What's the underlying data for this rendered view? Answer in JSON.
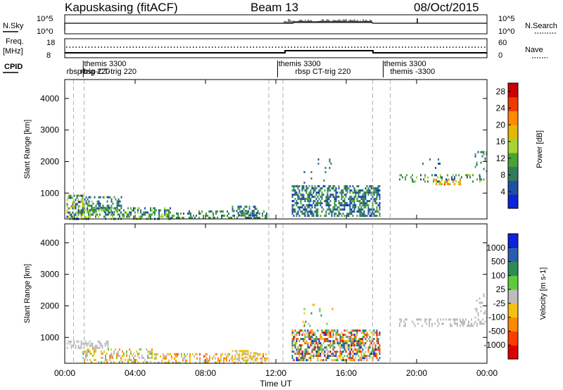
{
  "header": {
    "station": "Kapuskasing (fitACF)",
    "beam": "Beam 13",
    "date": "08/Oct/2015"
  },
  "strip": {
    "nsky_label": "N.Sky",
    "nsearch_label": "N.Search",
    "freq_label_1": "Freq.",
    "freq_label_2": "[MHz]",
    "nave_label": "Nave",
    "cpid_label": "CPID",
    "noise_left_ticks": [
      "10^5",
      "10^0"
    ],
    "noise_right_ticks": [
      "10^5",
      "10^0"
    ],
    "freq_left_ticks": [
      "18",
      "8"
    ],
    "freq_right_ticks": [
      "60",
      "0"
    ]
  },
  "cpid_labels": [
    {
      "text": "themis 3300",
      "hour": 1.1,
      "row": 1
    },
    {
      "text": "rbsp-trig 220",
      "hour": 0.1,
      "row": 2
    },
    {
      "text": "rbsp-CT-trig 220",
      "hour": 0.9,
      "row": 2
    },
    {
      "text": "themis 3300",
      "hour": 12.15,
      "row": 1
    },
    {
      "text": "rbsp CT-trig 220",
      "hour": 13.1,
      "row": 2
    },
    {
      "text": "themis 3300",
      "hour": 18.15,
      "row": 1
    },
    {
      "text": "themis -3300",
      "hour": 18.5,
      "row": 2
    }
  ],
  "chart_data": [
    {
      "type": "heatmap",
      "title": "Power",
      "xlabel": "Time UT",
      "ylabel": "Slant Range [km]",
      "colorbar_label": "Power [dB]",
      "xlim": [
        0,
        24
      ],
      "ylim": [
        180,
        4600
      ],
      "x_ticks": [
        "00:00",
        "04:00",
        "08:00",
        "12:00",
        "16:00",
        "20:00",
        "00:00"
      ],
      "y_ticks": [
        "1000",
        "2000",
        "3000",
        "4000"
      ],
      "colorbar_ticks": [
        "4",
        "8",
        "12",
        "16",
        "20",
        "24",
        "28"
      ],
      "colorbar_range": [
        0,
        30
      ],
      "colormap": [
        "#0a22d8",
        "#1f4ea6",
        "#2f7d5a",
        "#49a336",
        "#a8d431",
        "#e5b800",
        "#ff8a00",
        "#ee3b00",
        "#cc0000"
      ],
      "scatter_regions": [
        {
          "t": [
            0.1,
            1.1
          ],
          "r": [
            200,
            950
          ],
          "density": 0.6,
          "level": [
            3,
            20
          ]
        },
        {
          "t": [
            1.1,
            3.2
          ],
          "r": [
            400,
            900
          ],
          "density": 0.45,
          "level": [
            4,
            14
          ]
        },
        {
          "t": [
            1.0,
            6.0
          ],
          "r": [
            200,
            550
          ],
          "density": 0.45,
          "level": [
            5,
            16
          ]
        },
        {
          "t": [
            6.0,
            11.5
          ],
          "r": [
            200,
            450
          ],
          "density": 0.35,
          "level": [
            5,
            14
          ]
        },
        {
          "t": [
            9.5,
            11.0
          ],
          "r": [
            300,
            600
          ],
          "density": 0.4,
          "level": [
            4,
            12
          ]
        },
        {
          "t": [
            12.9,
            17.9
          ],
          "r": [
            250,
            1250
          ],
          "density": 0.55,
          "level": [
            3,
            12
          ]
        },
        {
          "t": [
            13.5,
            15.5
          ],
          "r": [
            1300,
            2100
          ],
          "density": 0.04,
          "level": [
            4,
            10
          ]
        },
        {
          "t": [
            19.0,
            23.8
          ],
          "r": [
            1350,
            1600
          ],
          "density": 0.28,
          "level": [
            4,
            16
          ]
        },
        {
          "t": [
            21.0,
            22.5
          ],
          "r": [
            1250,
            1450
          ],
          "density": 0.5,
          "level": [
            14,
            24
          ]
        },
        {
          "t": [
            23.3,
            24.0
          ],
          "r": [
            1400,
            2400
          ],
          "density": 0.15,
          "level": [
            4,
            12
          ]
        },
        {
          "t": [
            20.0,
            21.5
          ],
          "r": [
            1800,
            2100
          ],
          "density": 0.06,
          "level": [
            4,
            10
          ]
        }
      ],
      "dashed_markers_hours": [
        0.5,
        1.1,
        11.6,
        12.4,
        17.5,
        18.5
      ]
    },
    {
      "type": "heatmap",
      "title": "Velocity",
      "xlabel": "Time UT",
      "ylabel": "Slant Range [km]",
      "colorbar_label": "Velocity [m s-1]",
      "xlim": [
        0,
        24
      ],
      "ylim": [
        180,
        4600
      ],
      "x_ticks": [
        "00:00",
        "04:00",
        "08:00",
        "12:00",
        "16:00",
        "20:00",
        "00:00"
      ],
      "y_ticks": [
        "1000",
        "2000",
        "3000",
        "4000"
      ],
      "colorbar_ticks": [
        "1000",
        "500",
        "100",
        "25",
        "-25",
        "-100",
        "-500",
        "-1000"
      ],
      "colorbar_range": [
        -1250,
        1250
      ],
      "colormap": [
        "#dd0000",
        "#ff3c00",
        "#ff8a00",
        "#f4c20d",
        "#bdbdbd",
        "#5ecb3a",
        "#2e8b57",
        "#2a5db0",
        "#0a22d8"
      ],
      "scatter_regions": [
        {
          "t": [
            0.1,
            2.5
          ],
          "r": [
            650,
            900
          ],
          "density": 0.55,
          "level": [
            -20,
            20
          ]
        },
        {
          "t": [
            1.0,
            5.0
          ],
          "r": [
            200,
            650
          ],
          "density": 0.4,
          "level": [
            -600,
            300
          ]
        },
        {
          "t": [
            5.0,
            11.5
          ],
          "r": [
            200,
            500
          ],
          "density": 0.35,
          "level": [
            -700,
            200
          ]
        },
        {
          "t": [
            9.5,
            11.0
          ],
          "r": [
            300,
            600
          ],
          "density": 0.4,
          "level": [
            -300,
            -50
          ]
        },
        {
          "t": [
            12.9,
            17.9
          ],
          "r": [
            250,
            1250
          ],
          "density": 0.6,
          "level": [
            -1100,
            1100
          ]
        },
        {
          "t": [
            13.5,
            15.5
          ],
          "r": [
            1300,
            2200
          ],
          "density": 0.04,
          "level": [
            -500,
            500
          ]
        },
        {
          "t": [
            19.0,
            23.8
          ],
          "r": [
            1350,
            1600
          ],
          "density": 0.3,
          "level": [
            -20,
            20
          ]
        },
        {
          "t": [
            23.3,
            24.0
          ],
          "r": [
            1400,
            2400
          ],
          "density": 0.15,
          "level": [
            -20,
            20
          ]
        }
      ],
      "dashed_markers_hours": [
        0.5,
        1.1,
        11.6,
        12.4,
        17.5,
        18.5
      ]
    }
  ]
}
